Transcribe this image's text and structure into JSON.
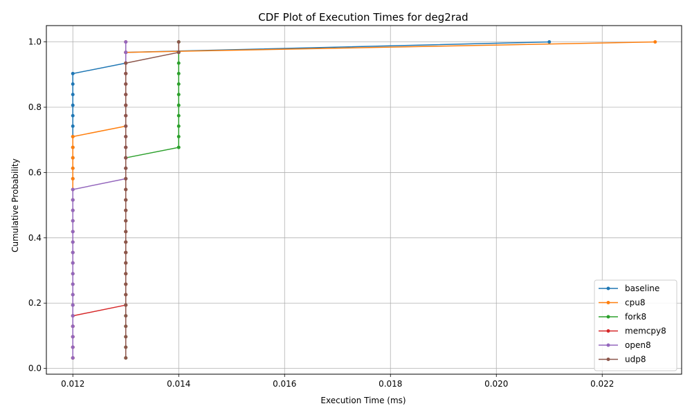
{
  "chart_data": {
    "type": "line",
    "title": "CDF Plot of Execution Times for deg2rad",
    "xlabel": "Execution Time (ms)",
    "ylabel": "Cumulative Probability",
    "xlim": [
      0.0115,
      0.0235
    ],
    "ylim": [
      -0.0177,
      1.05
    ],
    "xticks": [
      0.012,
      0.014,
      0.016,
      0.018,
      0.02,
      0.022
    ],
    "xtick_labels": [
      "0.012",
      "0.014",
      "0.016",
      "0.018",
      "0.020",
      "0.022"
    ],
    "yticks": [
      0.0,
      0.2,
      0.4,
      0.6,
      0.8,
      1.0
    ],
    "ytick_labels": [
      "0.0",
      "0.2",
      "0.4",
      "0.6",
      "0.8",
      "1.0"
    ],
    "grid": true,
    "legend_position": "lower-right",
    "series": [
      {
        "name": "baseline",
        "color": "#1f77b4",
        "x": [
          0.012,
          0.012,
          0.012,
          0.012,
          0.012,
          0.012,
          0.012,
          0.012,
          0.012,
          0.012,
          0.012,
          0.012,
          0.012,
          0.012,
          0.012,
          0.012,
          0.012,
          0.012,
          0.012,
          0.012,
          0.012,
          0.012,
          0.012,
          0.012,
          0.012,
          0.012,
          0.012,
          0.012,
          0.013,
          0.013,
          0.021
        ],
        "y": [
          0.032,
          0.065,
          0.097,
          0.129,
          0.161,
          0.194,
          0.226,
          0.258,
          0.29,
          0.323,
          0.355,
          0.387,
          0.419,
          0.452,
          0.484,
          0.516,
          0.548,
          0.581,
          0.613,
          0.645,
          0.677,
          0.71,
          0.742,
          0.774,
          0.806,
          0.839,
          0.871,
          0.903,
          0.935,
          0.968,
          1.0
        ]
      },
      {
        "name": "cpu8",
        "color": "#ff7f0e",
        "x": [
          0.012,
          0.012,
          0.012,
          0.012,
          0.012,
          0.012,
          0.012,
          0.012,
          0.012,
          0.012,
          0.012,
          0.012,
          0.012,
          0.012,
          0.012,
          0.012,
          0.012,
          0.012,
          0.012,
          0.012,
          0.012,
          0.012,
          0.013,
          0.013,
          0.013,
          0.013,
          0.013,
          0.013,
          0.013,
          0.013,
          0.023
        ],
        "y": [
          0.032,
          0.065,
          0.097,
          0.129,
          0.161,
          0.194,
          0.226,
          0.258,
          0.29,
          0.323,
          0.355,
          0.387,
          0.419,
          0.452,
          0.484,
          0.516,
          0.548,
          0.581,
          0.613,
          0.645,
          0.677,
          0.71,
          0.742,
          0.774,
          0.806,
          0.839,
          0.871,
          0.903,
          0.935,
          0.968,
          1.0
        ]
      },
      {
        "name": "fork8",
        "color": "#2ca02c",
        "x": [
          0.013,
          0.013,
          0.013,
          0.013,
          0.013,
          0.013,
          0.013,
          0.013,
          0.013,
          0.013,
          0.013,
          0.013,
          0.013,
          0.013,
          0.013,
          0.013,
          0.013,
          0.013,
          0.013,
          0.013,
          0.014,
          0.014,
          0.014,
          0.014,
          0.014,
          0.014,
          0.014,
          0.014,
          0.014,
          0.014,
          0.014
        ],
        "y": [
          0.032,
          0.065,
          0.097,
          0.129,
          0.161,
          0.194,
          0.226,
          0.258,
          0.29,
          0.323,
          0.355,
          0.387,
          0.419,
          0.452,
          0.484,
          0.516,
          0.548,
          0.581,
          0.613,
          0.645,
          0.677,
          0.71,
          0.742,
          0.774,
          0.806,
          0.839,
          0.871,
          0.903,
          0.935,
          0.968,
          1.0
        ]
      },
      {
        "name": "memcpy8",
        "color": "#d62728",
        "x": [
          0.012,
          0.012,
          0.012,
          0.012,
          0.012,
          0.013,
          0.013,
          0.013,
          0.013,
          0.013,
          0.013,
          0.013,
          0.013,
          0.013,
          0.013,
          0.013,
          0.013,
          0.013,
          0.013,
          0.013,
          0.013,
          0.013,
          0.013,
          0.013,
          0.013,
          0.013,
          0.013,
          0.013,
          0.013,
          0.013,
          0.013
        ],
        "y": [
          0.032,
          0.065,
          0.097,
          0.129,
          0.161,
          0.194,
          0.226,
          0.258,
          0.29,
          0.323,
          0.355,
          0.387,
          0.419,
          0.452,
          0.484,
          0.516,
          0.548,
          0.581,
          0.613,
          0.645,
          0.677,
          0.71,
          0.742,
          0.774,
          0.806,
          0.839,
          0.871,
          0.903,
          0.935,
          0.968,
          1.0
        ]
      },
      {
        "name": "open8",
        "color": "#9467bd",
        "x": [
          0.012,
          0.012,
          0.012,
          0.012,
          0.012,
          0.012,
          0.012,
          0.012,
          0.012,
          0.012,
          0.012,
          0.012,
          0.012,
          0.012,
          0.012,
          0.012,
          0.012,
          0.013,
          0.013,
          0.013,
          0.013,
          0.013,
          0.013,
          0.013,
          0.013,
          0.013,
          0.013,
          0.013,
          0.013,
          0.013,
          0.013
        ],
        "y": [
          0.032,
          0.065,
          0.097,
          0.129,
          0.161,
          0.194,
          0.226,
          0.258,
          0.29,
          0.323,
          0.355,
          0.387,
          0.419,
          0.452,
          0.484,
          0.516,
          0.548,
          0.581,
          0.613,
          0.645,
          0.677,
          0.71,
          0.742,
          0.774,
          0.806,
          0.839,
          0.871,
          0.903,
          0.935,
          0.968,
          1.0
        ]
      },
      {
        "name": "udp8",
        "color": "#8c564b",
        "x": [
          0.013,
          0.013,
          0.013,
          0.013,
          0.013,
          0.013,
          0.013,
          0.013,
          0.013,
          0.013,
          0.013,
          0.013,
          0.013,
          0.013,
          0.013,
          0.013,
          0.013,
          0.013,
          0.013,
          0.013,
          0.013,
          0.013,
          0.013,
          0.013,
          0.013,
          0.013,
          0.013,
          0.013,
          0.013,
          0.014,
          0.014
        ],
        "y": [
          0.032,
          0.065,
          0.097,
          0.129,
          0.161,
          0.194,
          0.226,
          0.258,
          0.29,
          0.323,
          0.355,
          0.387,
          0.419,
          0.452,
          0.484,
          0.516,
          0.548,
          0.581,
          0.613,
          0.645,
          0.677,
          0.71,
          0.742,
          0.774,
          0.806,
          0.839,
          0.871,
          0.903,
          0.935,
          0.968,
          1.0
        ]
      }
    ]
  }
}
